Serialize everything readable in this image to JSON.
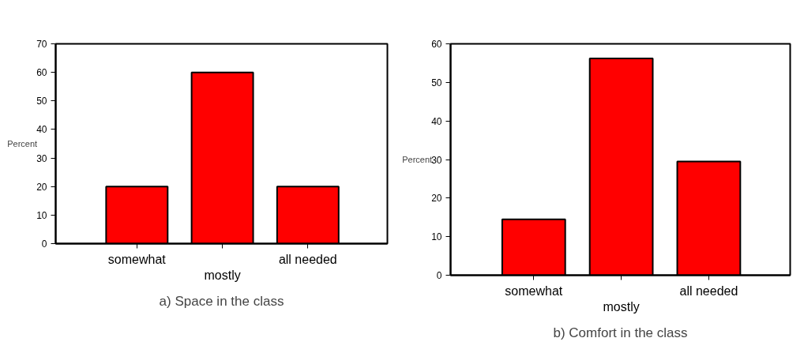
{
  "chart_data": [
    {
      "type": "bar",
      "title": "a) Space in the class",
      "ylabel": "Percent",
      "categories": [
        "somewhat",
        "mostly",
        "all needed"
      ],
      "values": [
        20,
        60,
        20
      ],
      "color": "#ff0000",
      "ylim": [
        0,
        70
      ],
      "yticks": [
        0,
        10,
        20,
        30,
        40,
        50,
        60,
        70
      ],
      "grid": false
    },
    {
      "type": "bar",
      "title": "b) Comfort in the class",
      "ylabel": "Percent",
      "categories": [
        "somewhat",
        "mostly",
        "all needed"
      ],
      "values": [
        14.5,
        56.2,
        29.5
      ],
      "color": "#ff0000",
      "ylim": [
        0,
        60
      ],
      "yticks": [
        0,
        10,
        20,
        30,
        40,
        50,
        60
      ],
      "grid": false
    }
  ]
}
